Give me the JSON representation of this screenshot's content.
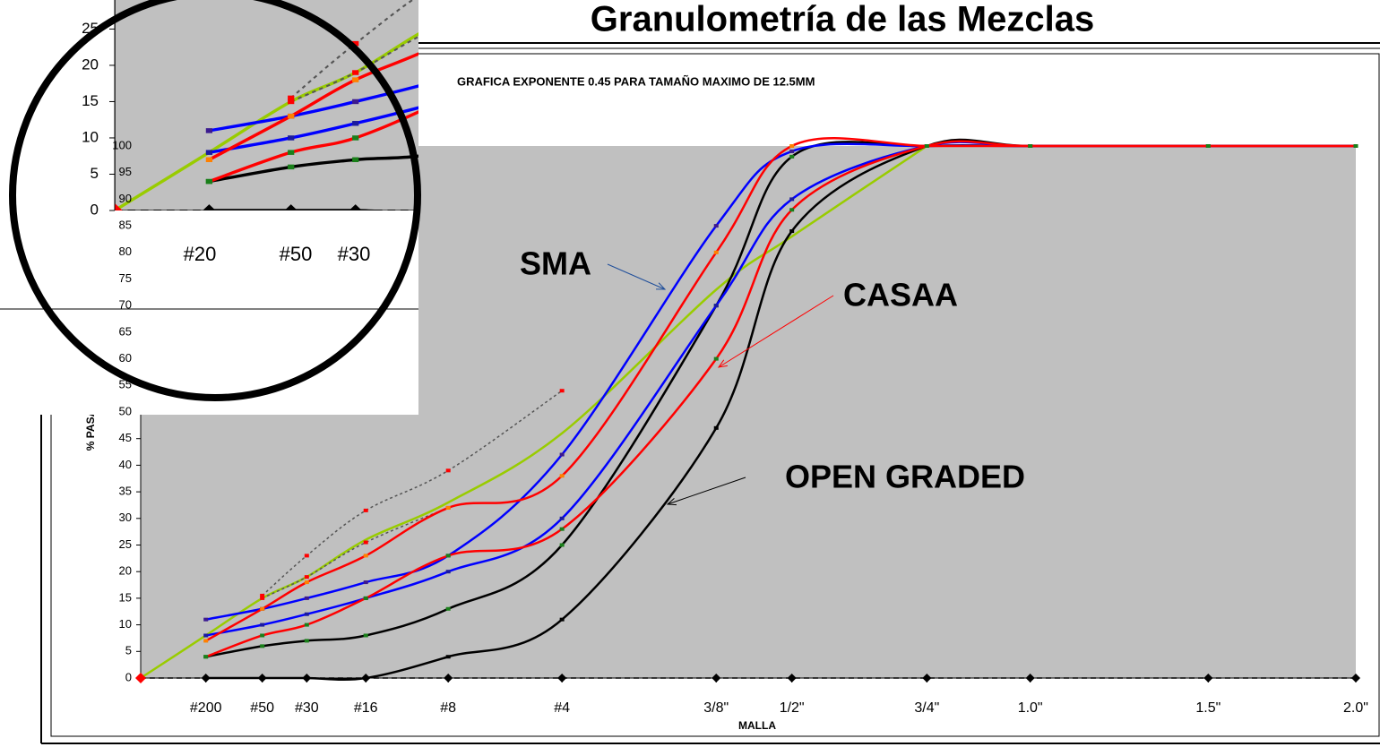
{
  "title": "Granulometría de las Mezclas",
  "chart_data": {
    "type": "line",
    "subtitle": "GRAFICA EXPONENTE 0.45 PARA TAMAÑO MAXIMO DE 12.5MM",
    "xlabel": "MALLA",
    "ylabel": "% PASA",
    "x": [
      0,
      0.075,
      0.3,
      0.6,
      1.18,
      2.36,
      4.75,
      9.5,
      12.5,
      19,
      25,
      37.5,
      50
    ],
    "xlim": [
      0,
      50
    ],
    "x_power": 0.45,
    "xticks": [
      {
        "value": 0.075,
        "label": "#200"
      },
      {
        "value": 0.3,
        "label": "#50"
      },
      {
        "value": 0.6,
        "label": "#30"
      },
      {
        "value": 1.18,
        "label": "#16"
      },
      {
        "value": 2.36,
        "label": "#8"
      },
      {
        "value": 4.75,
        "label": "#4"
      },
      {
        "value": 9.5,
        "label": "3/8\""
      },
      {
        "value": 12.5,
        "label": "1/2\""
      },
      {
        "value": 19,
        "label": "3/4\""
      },
      {
        "value": 25,
        "label": "1.0\""
      },
      {
        "value": 37.5,
        "label": "1.5\""
      },
      {
        "value": 50,
        "label": "2.0\""
      }
    ],
    "ylim": [
      0,
      100
    ],
    "yticks": [
      0,
      5,
      10,
      15,
      20,
      25,
      30,
      35,
      40,
      45,
      50,
      55,
      60,
      65,
      70,
      75,
      80,
      85,
      90,
      95,
      100
    ],
    "plot_color": "#c0c0c0",
    "series": [
      {
        "color": "#000000",
        "marker": "diamond",
        "marker_color": "#000000",
        "dash": "6 4",
        "values": [
          0,
          0,
          0,
          0,
          0,
          0,
          0,
          0,
          0,
          0,
          0,
          0,
          0
        ]
      },
      {
        "color": "#99cc00",
        "marker": "start",
        "marker_color": "#ff0000",
        "values": [
          0,
          8,
          15,
          19,
          26,
          33,
          46,
          73,
          83,
          100,
          null,
          null,
          null
        ]
      },
      {
        "color": "#555555",
        "marker": "square",
        "marker_color": "#ff0000",
        "dash": "3 3",
        "values": [
          null,
          null,
          15.5,
          23,
          31.5,
          39,
          54,
          null,
          null,
          null,
          null,
          null,
          null
        ]
      },
      {
        "color": "#555555",
        "marker": "square",
        "marker_color": "#ff0000",
        "dash": "3 3",
        "values": [
          null,
          null,
          15,
          19,
          25.5,
          32,
          null,
          null,
          null,
          null,
          null,
          null,
          null
        ]
      },
      {
        "color": "#000000",
        "marker": "square",
        "marker_color": "#000000",
        "values": [
          null,
          0,
          0,
          0,
          0,
          4,
          11,
          47,
          84,
          100,
          100,
          100,
          100
        ]
      },
      {
        "color": "#000000",
        "marker": "square",
        "marker_color": "#1a7f1a",
        "values": [
          null,
          4,
          6,
          7,
          8,
          13,
          25,
          70,
          98,
          100,
          100,
          100,
          100
        ]
      },
      {
        "color": "#0000ff",
        "marker": "square",
        "marker_color": "#3b1a8f",
        "values": [
          null,
          11,
          13,
          15,
          18,
          23,
          42,
          85,
          99,
          100,
          100,
          100,
          100
        ]
      },
      {
        "color": "#0000ff",
        "marker": "square",
        "marker_color": "#1a1aa0",
        "values": [
          null,
          8,
          10,
          12,
          15,
          20,
          30,
          70,
          90,
          100,
          100,
          100,
          100
        ]
      },
      {
        "color": "#ff0000",
        "marker": "square",
        "marker_color": "#ff8000",
        "values": [
          null,
          7,
          13,
          18,
          23,
          32,
          38,
          80,
          100,
          100,
          100,
          100,
          100
        ]
      },
      {
        "color": "#ff0000",
        "marker": "square",
        "marker_color": "#1a7f1a",
        "values": [
          null,
          4,
          8,
          10,
          15,
          23,
          28,
          60,
          88,
          100,
          100,
          100,
          100
        ]
      }
    ],
    "annotations": [
      {
        "text": "SMA",
        "color": "#1f4e9a"
      },
      {
        "text": "CASAA",
        "color": "#ff0000"
      },
      {
        "text": "OPEN GRADED",
        "color": "#000000"
      }
    ]
  },
  "inset": {
    "ylim": [
      0,
      29
    ],
    "yticks": [
      0,
      5,
      10,
      15,
      20,
      25
    ],
    "xtick_labels": [
      "#20",
      "#50",
      "#30"
    ]
  }
}
